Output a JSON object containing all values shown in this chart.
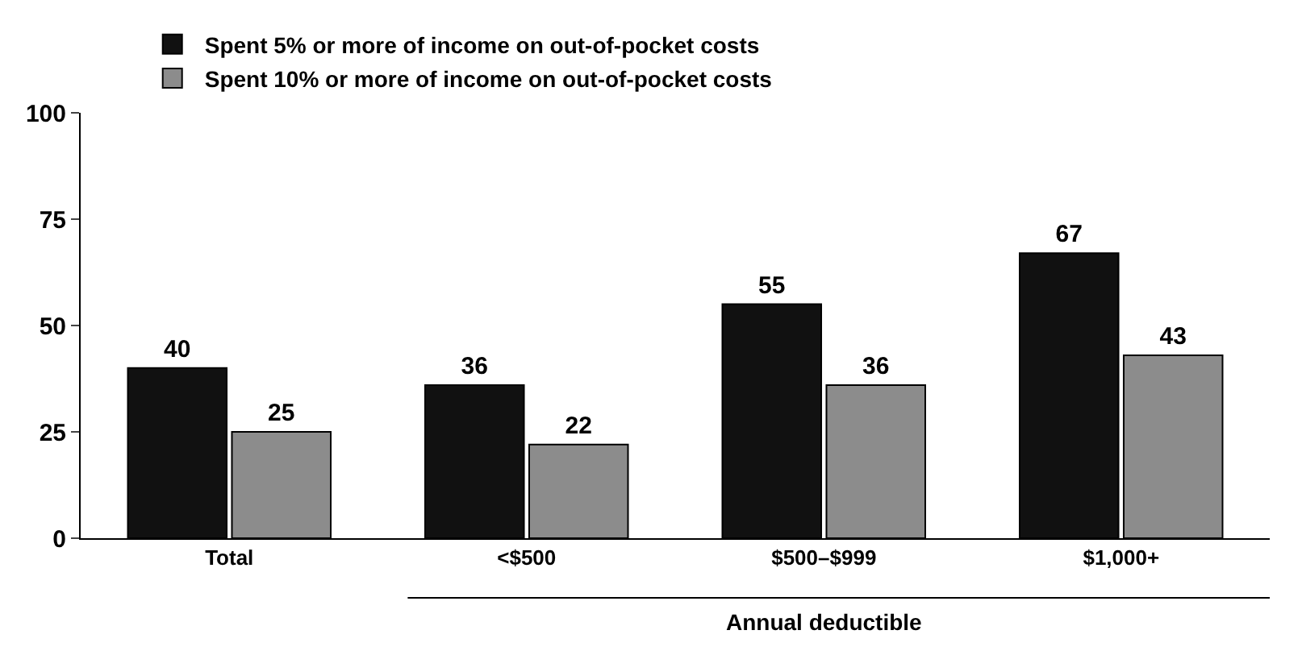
{
  "chart_data": {
    "type": "bar",
    "categories": [
      "Total",
      "<$500",
      "$500–$999",
      "$1,000+"
    ],
    "series": [
      {
        "name": "Spent 5% or more of income on out-of-pocket costs",
        "color": "#111111",
        "values": [
          40,
          36,
          55,
          67
        ]
      },
      {
        "name": "Spent 10% or more of income on out-of-pocket costs",
        "color": "#8c8c8c",
        "values": [
          25,
          22,
          36,
          43
        ]
      }
    ],
    "ylim": [
      0,
      100
    ],
    "yticks": [
      0,
      25,
      50,
      75,
      100
    ],
    "legend": "top",
    "data_labels": true,
    "annotations": [
      "Annual deductible"
    ]
  }
}
